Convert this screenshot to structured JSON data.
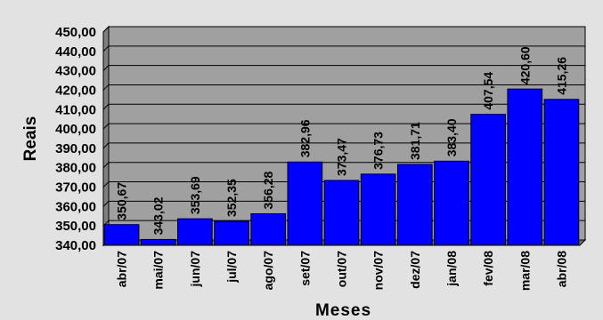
{
  "chart_data": {
    "type": "bar",
    "title": "",
    "xlabel": "Meses",
    "ylabel": "Reais",
    "categories": [
      "abr/07",
      "mai/07",
      "jun/07",
      "jul/07",
      "ago/07",
      "set/07",
      "out/07",
      "nov/07",
      "dez/07",
      "jan/08",
      "fev/08",
      "mar/08",
      "abr/08"
    ],
    "values": [
      350.67,
      343.02,
      353.69,
      352.35,
      356.28,
      382.96,
      373.47,
      376.73,
      381.71,
      383.4,
      407.54,
      420.6,
      415.26
    ],
    "value_labels": [
      "350,67",
      "343,02",
      "353,69",
      "352,35",
      "356,28",
      "382,96",
      "373,47",
      "376,73",
      "381,71",
      "383,40",
      "407,54",
      "420,60",
      "415,26"
    ],
    "yticks": [
      340,
      350,
      360,
      370,
      380,
      390,
      400,
      410,
      420,
      430,
      440,
      450
    ],
    "ytick_labels": [
      "340,00",
      "350,00",
      "360,00",
      "370,00",
      "380,00",
      "390,00",
      "400,00",
      "410,00",
      "420,00",
      "430,00",
      "440,00",
      "450,00"
    ],
    "ylim": [
      340,
      450
    ],
    "grid": true,
    "colors": {
      "bar": "#0000ff",
      "bar_edge": "#000000",
      "plot_background": "#a0a0a0",
      "page_background": "#e2e2e2",
      "gridline": "#000000"
    }
  }
}
